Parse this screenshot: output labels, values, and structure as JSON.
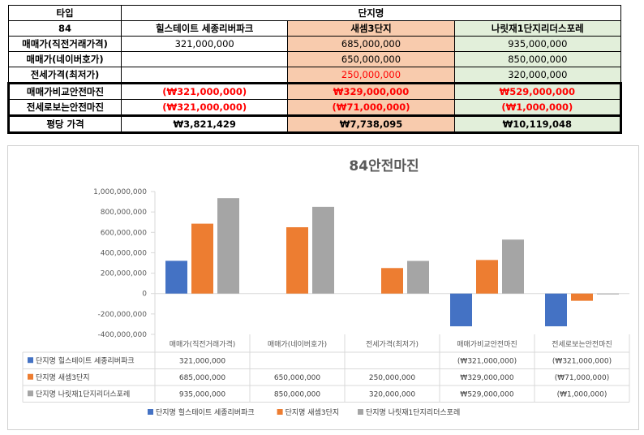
{
  "table": {
    "header_row": {
      "label": "타입",
      "group": "단지명"
    },
    "size_row": {
      "label": "84",
      "c1": "힐스테이트 세종리버파크",
      "c2": "새셈3단지",
      "c3": "나릿재1단지리더스포레"
    },
    "rows": [
      {
        "label": "매매가(직전거래가격)",
        "c1": "321,000,000",
        "c2": "685,000,000",
        "c3": "935,000,000"
      },
      {
        "label": "매매가(네이버호가)",
        "c1": "",
        "c2": "650,000,000",
        "c3": "850,000,000"
      },
      {
        "label": "전세가격(최저가)",
        "c1": "",
        "c2": "250,000,000",
        "c3": "320,000,000"
      },
      {
        "label": "매매가비교안전마진",
        "c1": "(₩321,000,000)",
        "c2": "₩329,000,000",
        "c3": "₩529,000,000"
      },
      {
        "label": "전세로보는안전마진",
        "c1": "(₩321,000,000)",
        "c2": "(₩71,000,000)",
        "c3": "(₩1,000,000)"
      },
      {
        "label": "평당 가격",
        "c1": "₩3,821,429",
        "c2": "₩7,738,095",
        "c3": "₩10,119,048"
      }
    ]
  },
  "chart_data": {
    "type": "bar",
    "title": "84안전마진",
    "categories": [
      "매매가(직전거래가격)",
      "매매가(네이버호가)",
      "전세가격(최저가)",
      "매매가비교안전마진",
      "전세로보는안전마진"
    ],
    "series": [
      {
        "name": "단지명 힐스테이트 세종리버파크",
        "color": "#4472c4",
        "values": [
          321000000,
          null,
          null,
          -321000000,
          -321000000
        ],
        "labels": [
          "321,000,000",
          "",
          "",
          "(₩321,000,000)",
          "(₩321,000,000)"
        ]
      },
      {
        "name": "단지명 새셈3단지",
        "color": "#ed7d31",
        "values": [
          685000000,
          650000000,
          250000000,
          329000000,
          -71000000
        ],
        "labels": [
          "685,000,000",
          "650,000,000",
          "250,000,000",
          "₩329,000,000",
          "(₩71,000,000)"
        ]
      },
      {
        "name": "단지명 나릿재1단지리더스포레",
        "color": "#a5a5a5",
        "values": [
          935000000,
          850000000,
          320000000,
          529000000,
          -1000000
        ],
        "labels": [
          "935,000,000",
          "850,000,000",
          "320,000,000",
          "₩529,000,000",
          "(₩1,000,000)"
        ]
      }
    ],
    "ylim": [
      -400000000,
      1000000000
    ],
    "yticks": [
      1000000000,
      800000000,
      600000000,
      400000000,
      200000000,
      0,
      -200000000,
      -400000000
    ],
    "ytick_labels": [
      "1,000,000,000",
      "800,000,000",
      "600,000,000",
      "400,000,000",
      "200,000,000",
      "0",
      "-200,000,000",
      "-400,000,000"
    ],
    "legend": "bottom",
    "grid": false
  }
}
